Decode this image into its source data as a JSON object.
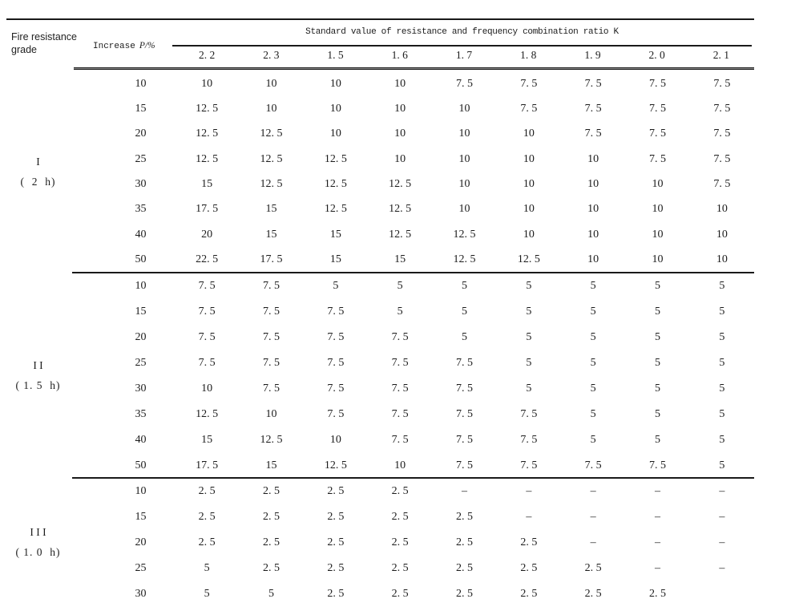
{
  "page": {
    "background": "#ffffff",
    "text_color": "#1c1c1c",
    "line_color": "#1a1a1a"
  },
  "table": {
    "row_header": {
      "line1": "Fire resistance",
      "line2": "grade"
    },
    "increase_header": {
      "label": "Increase",
      "symbol": "P/%"
    },
    "span_header": "Standard value of resistance and frequency combination ratio K",
    "k_values": [
      "2. 2",
      "2. 3",
      "1. 5",
      "1. 6",
      "1. 7",
      "1. 8",
      "1. 9",
      "2. 0",
      "2. 1"
    ],
    "groups": [
      {
        "grade": "I",
        "duration": "(  2  h)",
        "rows": [
          {
            "increase": "10",
            "values": [
              "10",
              "10",
              "10",
              "10",
              "7. 5",
              "7. 5",
              "7. 5",
              "7. 5",
              "7. 5"
            ]
          },
          {
            "increase": "15",
            "values": [
              "12. 5",
              "10",
              "10",
              "10",
              "10",
              "7. 5",
              "7. 5",
              "7. 5",
              "7. 5"
            ]
          },
          {
            "increase": "20",
            "values": [
              "12. 5",
              "12. 5",
              "10",
              "10",
              "10",
              "10",
              "7. 5",
              "7. 5",
              "7. 5"
            ]
          },
          {
            "increase": "25",
            "values": [
              "12. 5",
              "12. 5",
              "12. 5",
              "10",
              "10",
              "10",
              "10",
              "7. 5",
              "7. 5"
            ]
          },
          {
            "increase": "30",
            "values": [
              "15",
              "12. 5",
              "12. 5",
              "12. 5",
              "10",
              "10",
              "10",
              "10",
              "7. 5"
            ]
          },
          {
            "increase": "35",
            "values": [
              "17. 5",
              "15",
              "12. 5",
              "12. 5",
              "10",
              "10",
              "10",
              "10",
              "10"
            ]
          },
          {
            "increase": "40",
            "values": [
              "20",
              "15",
              "15",
              "12. 5",
              "12. 5",
              "10",
              "10",
              "10",
              "10"
            ]
          },
          {
            "increase": "50",
            "values": [
              "22. 5",
              "17. 5",
              "15",
              "15",
              "12. 5",
              "12. 5",
              "10",
              "10",
              "10"
            ]
          }
        ]
      },
      {
        "grade": "I I",
        "duration": "( 1. 5  h)",
        "rows": [
          {
            "increase": "10",
            "values": [
              "7. 5",
              "7. 5",
              "5",
              "5",
              "5",
              "5",
              "5",
              "5",
              "5"
            ]
          },
          {
            "increase": "15",
            "values": [
              "7. 5",
              "7. 5",
              "7. 5",
              "5",
              "5",
              "5",
              "5",
              "5",
              "5"
            ]
          },
          {
            "increase": "20",
            "values": [
              "7. 5",
              "7. 5",
              "7. 5",
              "7. 5",
              "5",
              "5",
              "5",
              "5",
              "5"
            ]
          },
          {
            "increase": "25",
            "values": [
              "7. 5",
              "7. 5",
              "7. 5",
              "7. 5",
              "7. 5",
              "5",
              "5",
              "5",
              "5"
            ]
          },
          {
            "increase": "30",
            "values": [
              "10",
              "7. 5",
              "7. 5",
              "7. 5",
              "7. 5",
              "5",
              "5",
              "5",
              "5"
            ]
          },
          {
            "increase": "35",
            "values": [
              "12. 5",
              "10",
              "7. 5",
              "7. 5",
              "7. 5",
              "7. 5",
              "5",
              "5",
              "5"
            ]
          },
          {
            "increase": "40",
            "values": [
              "15",
              "12. 5",
              "10",
              "7. 5",
              "7. 5",
              "7. 5",
              "5",
              "5",
              "5"
            ]
          },
          {
            "increase": "50",
            "values": [
              "17. 5",
              "15",
              "12. 5",
              "10",
              "7. 5",
              "7. 5",
              "7. 5",
              "7. 5",
              "5"
            ]
          }
        ]
      },
      {
        "grade": "I I I",
        "duration": "( 1. 0  h)",
        "rows": [
          {
            "increase": "10",
            "values": [
              "2. 5",
              "2. 5",
              "2. 5",
              "2. 5",
              "–",
              "–",
              "–",
              "–",
              "–"
            ]
          },
          {
            "increase": "15",
            "values": [
              "2. 5",
              "2. 5",
              "2. 5",
              "2. 5",
              "2. 5",
              "–",
              "–",
              "–",
              "–"
            ]
          },
          {
            "increase": "20",
            "values": [
              "2. 5",
              "2. 5",
              "2. 5",
              "2. 5",
              "2. 5",
              "2. 5",
              "–",
              "–",
              "–"
            ]
          },
          {
            "increase": "25",
            "values": [
              "5",
              "2. 5",
              "2. 5",
              "2. 5",
              "2. 5",
              "2. 5",
              "2. 5",
              "–",
              "–"
            ]
          },
          {
            "increase": "30",
            "values": [
              "5",
              "5",
              "2. 5",
              "2. 5",
              "2. 5",
              "2. 5",
              "2. 5",
              "2. 5",
              ""
            ]
          }
        ]
      }
    ]
  }
}
